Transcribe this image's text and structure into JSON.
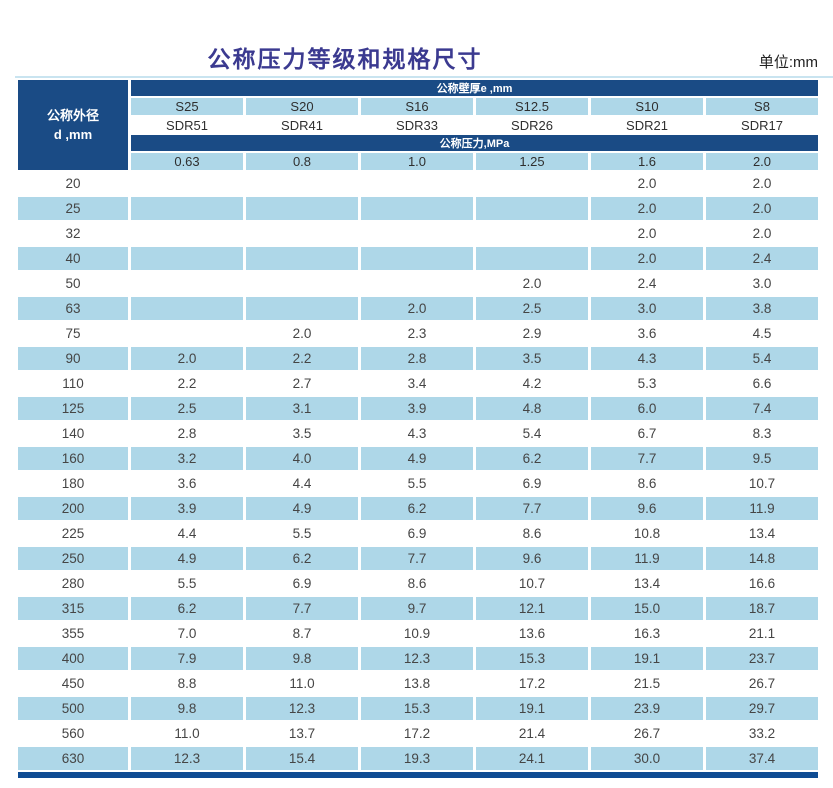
{
  "title": "公称压力等级和规格尺寸",
  "unit_label": "单位:mm",
  "colors": {
    "dark_blue": "#1a4b85",
    "light_blue": "#aed7e8",
    "title": "#3b3a90",
    "bottom_bar": "#0f4c93"
  },
  "chart_data": {
    "type": "table",
    "title": "公称压力等级和规格尺寸",
    "unit": "单位:mm",
    "diameter_header_line1": "公称外径",
    "diameter_header_line2": "d ,mm",
    "wall_thickness_header": "公称壁厚e ,mm",
    "pressure_header": "公称压力,MPa",
    "s_labels": [
      "S25",
      "S20",
      "S16",
      "S12.5",
      "S10",
      "S8"
    ],
    "sdr_labels": [
      "SDR51",
      "SDR41",
      "SDR33",
      "SDR26",
      "SDR21",
      "SDR17"
    ],
    "pressure_values": [
      "0.63",
      "0.8",
      "1.0",
      "1.25",
      "1.6",
      "2.0"
    ],
    "rows": [
      {
        "d": "20",
        "values": [
          "",
          "",
          "",
          "",
          "2.0",
          "2.0"
        ]
      },
      {
        "d": "25",
        "values": [
          "",
          "",
          "",
          "",
          "2.0",
          "2.0"
        ]
      },
      {
        "d": "32",
        "values": [
          "",
          "",
          "",
          "",
          "2.0",
          "2.0"
        ]
      },
      {
        "d": "40",
        "values": [
          "",
          "",
          "",
          "",
          "2.0",
          "2.4"
        ]
      },
      {
        "d": "50",
        "values": [
          "",
          "",
          "",
          "2.0",
          "2.4",
          "3.0"
        ]
      },
      {
        "d": "63",
        "values": [
          "",
          "",
          "2.0",
          "2.5",
          "3.0",
          "3.8"
        ]
      },
      {
        "d": "75",
        "values": [
          "",
          "2.0",
          "2.3",
          "2.9",
          "3.6",
          "4.5"
        ]
      },
      {
        "d": "90",
        "values": [
          "2.0",
          "2.2",
          "2.8",
          "3.5",
          "4.3",
          "5.4"
        ]
      },
      {
        "d": "110",
        "values": [
          "2.2",
          "2.7",
          "3.4",
          "4.2",
          "5.3",
          "6.6"
        ]
      },
      {
        "d": "125",
        "values": [
          "2.5",
          "3.1",
          "3.9",
          "4.8",
          "6.0",
          "7.4"
        ]
      },
      {
        "d": "140",
        "values": [
          "2.8",
          "3.5",
          "4.3",
          "5.4",
          "6.7",
          "8.3"
        ]
      },
      {
        "d": "160",
        "values": [
          "3.2",
          "4.0",
          "4.9",
          "6.2",
          "7.7",
          "9.5"
        ]
      },
      {
        "d": "180",
        "values": [
          "3.6",
          "4.4",
          "5.5",
          "6.9",
          "8.6",
          "10.7"
        ]
      },
      {
        "d": "200",
        "values": [
          "3.9",
          "4.9",
          "6.2",
          "7.7",
          "9.6",
          "11.9"
        ]
      },
      {
        "d": "225",
        "values": [
          "4.4",
          "5.5",
          "6.9",
          "8.6",
          "10.8",
          "13.4"
        ]
      },
      {
        "d": "250",
        "values": [
          "4.9",
          "6.2",
          "7.7",
          "9.6",
          "11.9",
          "14.8"
        ]
      },
      {
        "d": "280",
        "values": [
          "5.5",
          "6.9",
          "8.6",
          "10.7",
          "13.4",
          "16.6"
        ]
      },
      {
        "d": "315",
        "values": [
          "6.2",
          "7.7",
          "9.7",
          "12.1",
          "15.0",
          "18.7"
        ]
      },
      {
        "d": "355",
        "values": [
          "7.0",
          "8.7",
          "10.9",
          "13.6",
          "16.3",
          "21.1"
        ]
      },
      {
        "d": "400",
        "values": [
          "7.9",
          "9.8",
          "12.3",
          "15.3",
          "19.1",
          "23.7"
        ]
      },
      {
        "d": "450",
        "values": [
          "8.8",
          "11.0",
          "13.8",
          "17.2",
          "21.5",
          "26.7"
        ]
      },
      {
        "d": "500",
        "values": [
          "9.8",
          "12.3",
          "15.3",
          "19.1",
          "23.9",
          "29.7"
        ]
      },
      {
        "d": "560",
        "values": [
          "11.0",
          "13.7",
          "17.2",
          "21.4",
          "26.7",
          "33.2"
        ]
      },
      {
        "d": "630",
        "values": [
          "12.3",
          "15.4",
          "19.3",
          "24.1",
          "30.0",
          "37.4"
        ]
      }
    ]
  }
}
